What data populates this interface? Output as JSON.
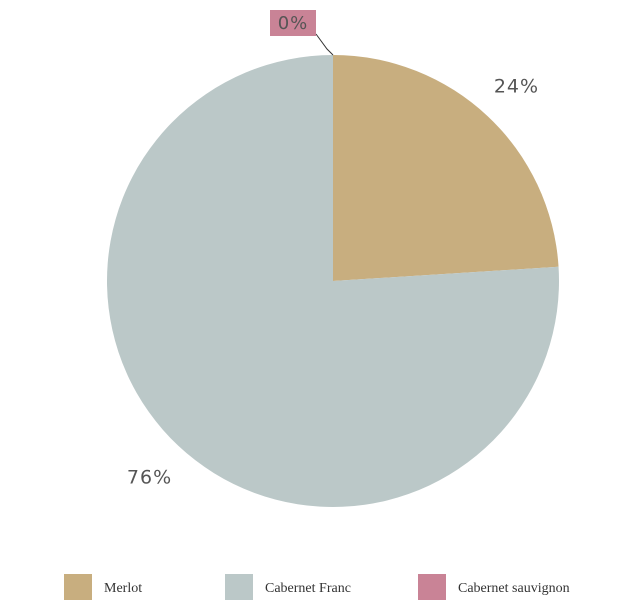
{
  "chart_data": {
    "type": "pie",
    "categories": [
      "Merlot",
      "Cabernet Franc",
      "Cabernet sauvignon"
    ],
    "values": [
      24,
      76,
      0
    ],
    "value_labels": [
      "24%",
      "76%",
      "0%"
    ],
    "colors": [
      "#c8ae7f",
      "#bbc8c8",
      "#c98396"
    ],
    "legend_position": "bottom"
  }
}
